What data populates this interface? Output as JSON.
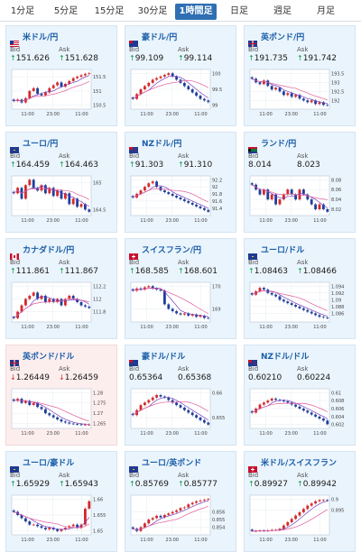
{
  "tabs": [
    {
      "label": "1分足",
      "active": false
    },
    {
      "label": "5分足",
      "active": false
    },
    {
      "label": "15分足",
      "active": false
    },
    {
      "label": "30分足",
      "active": false
    },
    {
      "label": "1時間足",
      "active": true
    },
    {
      "label": "日足",
      "active": false
    },
    {
      "label": "週足",
      "active": false
    },
    {
      "label": "月足",
      "active": false
    }
  ],
  "labels": {
    "bid": "Bid",
    "ask": "Ask"
  },
  "colors": {
    "up": "#0a9a4a",
    "down": "#d22a2a",
    "candle_up": "#d22a2a",
    "candle_down": "#1f3f9a",
    "ma1": "#7a3fbf",
    "ma2": "#e05a9a"
  },
  "cards": [
    {
      "name": "米ドル/円",
      "flag": "us",
      "bid": "151.626",
      "ask": "151.628",
      "dir": "up",
      "y_ticks": [
        "151.5",
        "151",
        "150.5"
      ],
      "x_ticks": [
        "11:00",
        "23:00",
        "11:00"
      ],
      "closes": [
        150.65,
        150.7,
        150.6,
        150.75,
        151.0,
        151.1,
        150.9,
        150.85,
        150.95,
        151.1,
        151.2,
        151.3,
        151.15,
        151.25,
        151.35,
        151.45,
        151.5,
        151.55,
        151.6,
        151.62
      ]
    },
    {
      "name": "豪ドル/円",
      "flag": "au",
      "bid": "99.109",
      "ask": "99.114",
      "dir": "up",
      "y_ticks": [
        "100",
        "99.5",
        "99"
      ],
      "x_ticks": [
        "11:00",
        "23:00",
        "11:00"
      ],
      "closes": [
        99.2,
        99.35,
        99.5,
        99.6,
        99.7,
        99.8,
        99.85,
        99.9,
        99.95,
        100.0,
        99.9,
        99.8,
        99.7,
        99.6,
        99.5,
        99.4,
        99.3,
        99.2,
        99.15,
        99.1
      ]
    },
    {
      "name": "英ポンド/円",
      "flag": "gb",
      "bid": "191.735",
      "ask": "191.742",
      "dir": "up",
      "y_ticks": [
        "193.5",
        "193",
        "192.5",
        "192"
      ],
      "x_ticks": [
        "11:00",
        "23:00",
        "11:00"
      ],
      "closes": [
        193.2,
        193.0,
        192.9,
        193.1,
        192.8,
        192.6,
        192.7,
        192.5,
        192.3,
        192.4,
        192.2,
        192.3,
        192.1,
        192.0,
        191.9,
        192.0,
        191.8,
        191.9,
        191.75,
        191.73
      ]
    },
    {
      "name": "ユーロ/円",
      "flag": "eu",
      "bid": "164.459",
      "ask": "164.463",
      "dir": "up",
      "y_ticks": [
        "165",
        "164.5"
      ],
      "x_ticks": [
        "11:00",
        "23:00",
        "11:00"
      ],
      "closes": [
        164.8,
        164.9,
        164.7,
        164.95,
        165.05,
        164.9,
        164.85,
        164.95,
        164.8,
        164.9,
        164.75,
        164.85,
        164.7,
        164.8,
        164.6,
        164.7,
        164.55,
        164.6,
        164.5,
        164.46
      ]
    },
    {
      "name": "NZドル/円",
      "flag": "nz",
      "bid": "91.303",
      "ask": "91.310",
      "dir": "up",
      "y_ticks": [
        "92.2",
        "92",
        "91.8",
        "91.6",
        "91.4"
      ],
      "x_ticks": [
        "11:00",
        "23:00",
        "11:00"
      ],
      "closes": [
        91.7,
        91.8,
        91.9,
        92.0,
        92.1,
        92.15,
        92.0,
        91.9,
        91.85,
        91.8,
        91.75,
        91.7,
        91.65,
        91.6,
        91.55,
        91.5,
        91.45,
        91.4,
        91.35,
        91.3
      ]
    },
    {
      "name": "ランド/円",
      "flag": "za",
      "bid": "8.014",
      "ask": "8.023",
      "dir": "none",
      "y_ticks": [
        "8.08",
        "8.06",
        "8.04",
        "8.02"
      ],
      "x_ticks": [
        "11:00",
        "23:00",
        "11:00"
      ],
      "closes": [
        8.07,
        8.06,
        8.05,
        8.06,
        8.04,
        8.05,
        8.03,
        8.04,
        8.05,
        8.06,
        8.05,
        8.04,
        8.06,
        8.05,
        8.04,
        8.03,
        8.02,
        8.03,
        8.02,
        8.015
      ]
    },
    {
      "name": "カナダドル/円",
      "flag": "ca",
      "bid": "111.861",
      "ask": "111.867",
      "dir": "up",
      "y_ticks": [
        "112.2",
        "112",
        "111.8"
      ],
      "x_ticks": [
        "11:00",
        "23:00",
        "11:00"
      ],
      "closes": [
        111.7,
        111.8,
        111.9,
        112.0,
        112.05,
        112.1,
        112.0,
        112.05,
        111.95,
        112.0,
        111.95,
        112.0,
        111.9,
        112.0,
        112.05,
        112.0,
        111.95,
        111.9,
        111.88,
        111.86
      ]
    },
    {
      "name": "スイスフラン/円",
      "flag": "ch",
      "bid": "168.585",
      "ask": "168.601",
      "dir": "up",
      "y_ticks": [
        "170",
        "169"
      ],
      "x_ticks": [
        "11:00",
        "23:00",
        "11:00"
      ],
      "closes": [
        169.8,
        169.9,
        169.85,
        169.95,
        170.0,
        169.9,
        169.85,
        169.8,
        169.2,
        169.0,
        168.9,
        168.8,
        168.75,
        168.8,
        168.7,
        168.75,
        168.65,
        168.7,
        168.6,
        168.59
      ]
    },
    {
      "name": "ユーロ/ドル",
      "flag": "eu",
      "bid": "1.08463",
      "ask": "1.08466",
      "dir": "up",
      "y_ticks": [
        "1.094",
        "1.092",
        "1.09",
        "1.088",
        "1.086"
      ],
      "x_ticks": [
        "11:00",
        "23:00",
        "11:00"
      ],
      "closes": [
        1.0915,
        1.0925,
        1.0935,
        1.093,
        1.092,
        1.0915,
        1.091,
        1.09,
        1.0895,
        1.089,
        1.0885,
        1.088,
        1.0875,
        1.087,
        1.0865,
        1.086,
        1.0855,
        1.085,
        1.0848,
        1.0846
      ]
    },
    {
      "name": "英ポンド/ドル",
      "flag": "gb",
      "bid": "1.26449",
      "ask": "1.26459",
      "dir": "down",
      "alt": true,
      "y_ticks": [
        "1.28",
        "1.275",
        "1.27",
        "1.265"
      ],
      "x_ticks": [
        "11:00",
        "23:00",
        "11:00"
      ],
      "closes": [
        1.276,
        1.277,
        1.275,
        1.276,
        1.274,
        1.275,
        1.273,
        1.272,
        1.27,
        1.269,
        1.268,
        1.267,
        1.266,
        1.2655,
        1.265,
        1.2648,
        1.2646,
        1.2645,
        1.2645,
        1.2645
      ]
    },
    {
      "name": "豪ドル/ドル",
      "flag": "au",
      "bid": "0.65364",
      "ask": "0.65368",
      "dir": "none",
      "y_ticks": [
        "0.66",
        "0.655"
      ],
      "x_ticks": [
        "11:00",
        "23:00",
        "11:00"
      ],
      "closes": [
        0.6555,
        0.6565,
        0.6575,
        0.658,
        0.6585,
        0.659,
        0.6595,
        0.6592,
        0.659,
        0.6585,
        0.658,
        0.6575,
        0.657,
        0.6565,
        0.656,
        0.6555,
        0.655,
        0.6545,
        0.654,
        0.6536
      ]
    },
    {
      "name": "NZドル/ドル",
      "flag": "nz",
      "bid": "0.60210",
      "ask": "0.60224",
      "dir": "none",
      "y_ticks": [
        "0.61",
        "0.608",
        "0.606",
        "0.604",
        "0.602"
      ],
      "x_ticks": [
        "11:00",
        "23:00",
        "11:00"
      ],
      "closes": [
        0.605,
        0.606,
        0.607,
        0.6075,
        0.608,
        0.6085,
        0.6082,
        0.608,
        0.6078,
        0.6075,
        0.607,
        0.6065,
        0.606,
        0.6055,
        0.605,
        0.6045,
        0.604,
        0.6035,
        0.603,
        0.6021
      ]
    },
    {
      "name": "ユーロ/豪ドル",
      "flag": "eu",
      "bid": "1.65929",
      "ask": "1.65943",
      "dir": "up",
      "y_ticks": [
        "1.66",
        "1.655",
        "1.65"
      ],
      "x_ticks": [
        "11:00",
        "23:00",
        "11:00"
      ],
      "closes": [
        1.656,
        1.655,
        1.654,
        1.653,
        1.652,
        1.652,
        1.6515,
        1.651,
        1.6505,
        1.651,
        1.6505,
        1.65,
        1.6505,
        1.651,
        1.6515,
        1.652,
        1.651,
        1.652,
        1.657,
        1.6593
      ]
    },
    {
      "name": "ユーロ/英ポンド",
      "flag": "eu",
      "bid": "0.85769",
      "ask": "0.85777",
      "dir": "up",
      "y_ticks": [
        "0.856",
        "0.855",
        "0.854"
      ],
      "x_ticks": [
        "11:00",
        "23:00",
        "11:00"
      ],
      "closes": [
        0.8538,
        0.8535,
        0.854,
        0.8545,
        0.855,
        0.8552,
        0.8555,
        0.8553,
        0.8556,
        0.8558,
        0.856,
        0.8562,
        0.8565,
        0.8566,
        0.857,
        0.8572,
        0.8574,
        0.8575,
        0.8576,
        0.8577
      ]
    },
    {
      "name": "米ドル/スイスフラン",
      "flag": "ch",
      "bid": "0.89927",
      "ask": "0.89942",
      "dir": "up",
      "y_ticks": [
        "0.9",
        "0.895"
      ],
      "x_ticks": [
        "11:00",
        "23:00",
        "11:00"
      ],
      "closes": [
        0.8855,
        0.8855,
        0.8857,
        0.8856,
        0.8858,
        0.886,
        0.886,
        0.8865,
        0.888,
        0.8895,
        0.891,
        0.8925,
        0.894,
        0.8955,
        0.897,
        0.898,
        0.899,
        0.8995,
        0.8995,
        0.8993
      ]
    }
  ]
}
